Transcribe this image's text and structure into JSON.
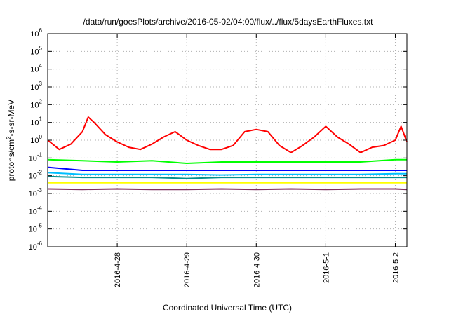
{
  "chart_data": {
    "type": "line",
    "title": "/data/run/goesPlots/archive/2016-05-02/04:00/flux/../flux/5daysEarthFluxes.txt",
    "xlabel": "Coordinated Universal Time (UTC)",
    "ylabel": {
      "prefix": "protons/cm",
      "sup": "2",
      "suffix": "-s-sr-MeV"
    },
    "yscale": "log",
    "ylim_exponents": [
      -6,
      6
    ],
    "ytick_exponents": [
      -6,
      -5,
      -4,
      -3,
      -2,
      -1,
      0,
      1,
      2,
      3,
      4,
      5,
      6
    ],
    "ytick_base": "10",
    "xlim": [
      "2016-04-27T00:00",
      "2016-05-02T04:00"
    ],
    "xticks": [
      {
        "t": "2016-04-28T00:00",
        "label": "2016-4-28"
      },
      {
        "t": "2016-04-29T00:00",
        "label": "2016-4-29"
      },
      {
        "t": "2016-04-30T00:00",
        "label": "2016-4-30"
      },
      {
        "t": "2016-05-01T00:00",
        "label": "2016-5-1"
      },
      {
        "t": "2016-05-02T00:00",
        "label": "2016-5-2"
      }
    ],
    "grid": true,
    "series": [
      {
        "color": "#ff0000",
        "x": [
          "2016-04-27T00:00",
          "2016-04-27T04:00",
          "2016-04-27T08:00",
          "2016-04-27T12:00",
          "2016-04-27T14:00",
          "2016-04-27T16:00",
          "2016-04-27T20:00",
          "2016-04-28T00:00",
          "2016-04-28T04:00",
          "2016-04-28T08:00",
          "2016-04-28T12:00",
          "2016-04-28T16:00",
          "2016-04-28T20:00",
          "2016-04-29T00:00",
          "2016-04-29T04:00",
          "2016-04-29T08:00",
          "2016-04-29T12:00",
          "2016-04-29T16:00",
          "2016-04-29T20:00",
          "2016-04-30T00:00",
          "2016-04-30T04:00",
          "2016-04-30T08:00",
          "2016-04-30T12:00",
          "2016-04-30T16:00",
          "2016-04-30T20:00",
          "2016-05-01T00:00",
          "2016-05-01T04:00",
          "2016-05-01T08:00",
          "2016-05-01T12:00",
          "2016-05-01T16:00",
          "2016-05-01T20:00",
          "2016-05-02T00:00",
          "2016-05-02T02:00",
          "2016-05-02T04:00"
        ],
        "y": [
          1.0,
          0.3,
          0.6,
          3.0,
          20,
          10,
          2.0,
          0.8,
          0.4,
          0.3,
          0.6,
          1.5,
          3.0,
          1.0,
          0.5,
          0.3,
          0.3,
          0.5,
          3.0,
          4.0,
          3.0,
          0.5,
          0.2,
          0.5,
          1.5,
          6.0,
          1.5,
          0.6,
          0.2,
          0.4,
          0.5,
          1.0,
          6.0,
          0.8
        ]
      },
      {
        "color": "#00ff00",
        "x": [
          "2016-04-27T00:00",
          "2016-04-27T12:00",
          "2016-04-28T00:00",
          "2016-04-28T12:00",
          "2016-04-29T00:00",
          "2016-04-29T12:00",
          "2016-04-30T00:00",
          "2016-04-30T12:00",
          "2016-05-01T00:00",
          "2016-05-01T12:00",
          "2016-05-02T00:00",
          "2016-05-02T04:00"
        ],
        "y": [
          0.08,
          0.07,
          0.06,
          0.07,
          0.05,
          0.06,
          0.06,
          0.06,
          0.06,
          0.06,
          0.08,
          0.08
        ]
      },
      {
        "color": "#0000ff",
        "x": [
          "2016-04-27T00:00",
          "2016-04-27T12:00",
          "2016-04-28T00:00",
          "2016-04-28T12:00",
          "2016-04-29T00:00",
          "2016-04-29T12:00",
          "2016-04-30T00:00",
          "2016-04-30T12:00",
          "2016-05-01T00:00",
          "2016-05-01T12:00",
          "2016-05-02T00:00",
          "2016-05-02T04:00"
        ],
        "y": [
          0.03,
          0.02,
          0.02,
          0.02,
          0.02,
          0.02,
          0.02,
          0.02,
          0.02,
          0.02,
          0.02,
          0.02
        ]
      },
      {
        "color": "#00bfff",
        "x": [
          "2016-04-27T00:00",
          "2016-04-27T12:00",
          "2016-04-28T00:00",
          "2016-04-28T12:00",
          "2016-04-29T00:00",
          "2016-04-29T12:00",
          "2016-04-30T00:00",
          "2016-04-30T12:00",
          "2016-05-01T00:00",
          "2016-05-01T12:00",
          "2016-05-02T00:00",
          "2016-05-02T04:00"
        ],
        "y": [
          0.015,
          0.012,
          0.012,
          0.012,
          0.012,
          0.011,
          0.012,
          0.012,
          0.012,
          0.012,
          0.013,
          0.013
        ]
      },
      {
        "color": "#009090",
        "x": [
          "2016-04-27T00:00",
          "2016-04-27T12:00",
          "2016-04-28T00:00",
          "2016-04-28T12:00",
          "2016-04-29T00:00",
          "2016-04-29T12:00",
          "2016-04-30T00:00",
          "2016-04-30T12:00",
          "2016-05-01T00:00",
          "2016-05-01T12:00",
          "2016-05-02T00:00",
          "2016-05-02T04:00"
        ],
        "y": [
          0.009,
          0.008,
          0.008,
          0.008,
          0.007,
          0.008,
          0.008,
          0.008,
          0.008,
          0.008,
          0.008,
          0.008
        ]
      },
      {
        "color": "#ffff00",
        "x": [
          "2016-04-27T00:00",
          "2016-04-28T00:00",
          "2016-04-29T00:00",
          "2016-04-30T00:00",
          "2016-05-01T00:00",
          "2016-05-02T00:00",
          "2016-05-02T04:00"
        ],
        "y": [
          0.004,
          0.004,
          0.004,
          0.004,
          0.004,
          0.004,
          0.004
        ]
      },
      {
        "color": "#803060",
        "x": [
          "2016-04-27T00:00",
          "2016-04-27T12:00",
          "2016-04-28T00:00",
          "2016-04-28T12:00",
          "2016-04-29T00:00",
          "2016-04-29T12:00",
          "2016-04-30T00:00",
          "2016-04-30T12:00",
          "2016-05-01T00:00",
          "2016-05-01T12:00",
          "2016-05-02T00:00",
          "2016-05-02T04:00"
        ],
        "y": [
          0.0018,
          0.0017,
          0.0018,
          0.0017,
          0.0017,
          0.0018,
          0.0017,
          0.0018,
          0.0017,
          0.0018,
          0.0018,
          0.0017
        ]
      }
    ]
  }
}
